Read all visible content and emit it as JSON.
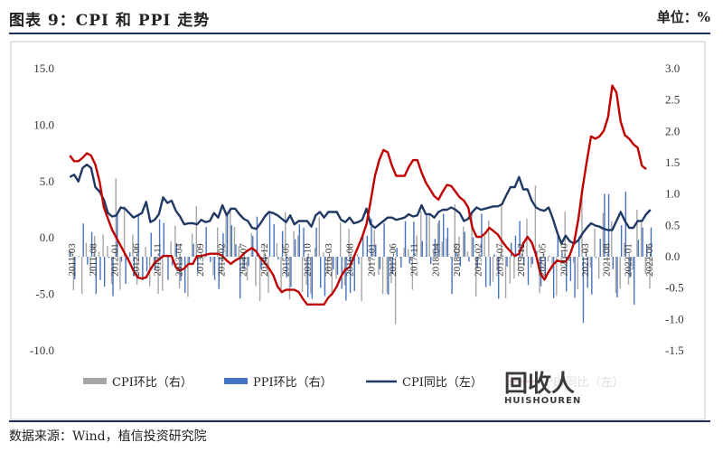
{
  "header": {
    "title": "图表 9：CPI 和 PPI 走势",
    "unit": "单位：%"
  },
  "footer": {
    "source": "数据来源：Wind，植信投资研究院"
  },
  "watermark": {
    "text": "回收人",
    "subtext": "HUISHOUREN"
  },
  "colors": {
    "cpi_mom": "#a6a6a6",
    "ppi_mom": "#4472c4",
    "cpi_yoy": "#1f3864",
    "ppi_yoy": "#c00000",
    "rule": "#1d2f5c"
  },
  "chart_data": {
    "type": "bar+line",
    "xlabels": [
      "2011-03",
      "2011-08",
      "2012-01",
      "2012-06",
      "2012-11",
      "2013-04",
      "2013-09",
      "2014-02",
      "2014-07",
      "2014-12",
      "2015-05",
      "2015-10",
      "2016-03",
      "2016-08",
      "2017-01",
      "2017-06",
      "2017-11",
      "2018-04",
      "2018-09",
      "2019-02",
      "2019-07",
      "2019-12",
      "2020-05",
      "2020-10",
      "2021-03",
      "2021-08",
      "2022-01",
      "2022-06"
    ],
    "ylim_left": [
      -10,
      15
    ],
    "yticks_left": [
      "15.0",
      "10.0",
      "5.0",
      "0.0",
      "-5.0",
      "-10.0"
    ],
    "ylim_right": [
      -1.5,
      3.0
    ],
    "yticks_right": [
      "3.0",
      "2.5",
      "2.0",
      "1.5",
      "1.0",
      "0.5",
      "0.0",
      "-0.5",
      "-1.0",
      "-1.5"
    ],
    "legend": [
      "CPI环比（右）",
      "PPI环比（右）",
      "CPI同比（左）",
      "PPI同比（左）"
    ],
    "series": [
      {
        "name": "CPI同比（左）",
        "axis": "left",
        "kind": "line",
        "values": [
          5.4,
          5.6,
          5.0,
          6.2,
          6.5,
          6.2,
          4.5,
          4.1,
          3.4,
          2.2,
          1.9,
          2.0,
          2.7,
          2.6,
          2.2,
          1.8,
          2.0,
          2.2,
          3.2,
          1.4,
          1.6,
          2.1,
          3.6,
          3.1,
          3.3,
          2.4,
          1.9,
          1.2,
          1.3,
          1.3,
          1.2,
          1.6,
          1.4,
          1.5,
          2.2,
          1.8,
          2.9,
          2.0,
          2.6,
          2.6,
          2.1,
          1.7,
          1.5,
          0.9,
          0.8,
          1.3,
          1.9,
          2.3,
          2.2,
          2.0,
          1.7,
          1.4,
          2.0,
          1.2,
          1.5,
          1.5,
          1.5,
          1.0,
          2.0,
          2.3,
          1.8,
          2.3,
          2.3,
          2.3,
          1.6,
          1.4,
          1.8,
          1.3,
          1.4,
          1.6,
          2.6,
          1.2,
          0.9,
          1.2,
          1.5,
          1.8,
          1.8,
          1.6,
          1.7,
          1.8,
          2.1,
          1.9,
          2.0,
          2.9,
          2.1,
          2.1,
          1.8,
          2.3,
          2.5,
          2.5,
          2.7,
          2.5,
          2.2,
          1.5,
          1.7,
          2.3,
          2.7,
          2.5,
          2.6,
          2.7,
          2.8,
          2.8,
          3.0,
          3.8,
          4.5,
          4.5,
          5.4,
          4.3,
          4.3,
          3.3,
          2.7,
          2.5,
          2.4,
          2.7,
          1.7,
          0.5,
          -0.5,
          0.2,
          -0.3,
          -0.5,
          -0.2,
          0.4,
          0.9,
          1.3,
          1.1,
          1.0,
          0.8,
          0.7,
          0.7,
          1.5,
          2.3,
          1.5,
          0.9,
          0.9,
          1.5,
          1.5,
          2.1,
          2.5
        ],
        "x_start": "2011-03"
      },
      {
        "name": "PPI同比（左）",
        "axis": "left",
        "kind": "line",
        "values": [
          7.3,
          6.8,
          6.8,
          7.1,
          7.5,
          7.3,
          6.5,
          5.0,
          2.7,
          1.7,
          0.7,
          0.0,
          -0.7,
          -1.4,
          -2.1,
          -2.9,
          -3.5,
          -3.6,
          -3.5,
          -2.8,
          -2.2,
          -1.9,
          -1.6,
          -1.6,
          -1.6,
          -2.6,
          -2.9,
          -2.7,
          -2.3,
          -2.3,
          -1.6,
          -1.6,
          -1.5,
          -1.4,
          -1.4,
          -1.4,
          -1.6,
          -2.0,
          -2.3,
          -2.0,
          -1.8,
          -1.4,
          -1.1,
          -0.9,
          -1.2,
          -1.8,
          -2.2,
          -2.7,
          -3.3,
          -4.3,
          -4.8,
          -4.6,
          -4.6,
          -4.6,
          -4.8,
          -5.4,
          -5.9,
          -5.9,
          -5.9,
          -5.9,
          -5.9,
          -5.3,
          -4.9,
          -4.3,
          -3.4,
          -2.8,
          -2.6,
          -1.7,
          -0.8,
          0.1,
          1.2,
          3.3,
          5.5,
          6.9,
          7.8,
          7.6,
          6.4,
          5.5,
          5.5,
          5.5,
          6.3,
          6.9,
          6.9,
          5.8,
          4.9,
          4.3,
          3.7,
          3.4,
          4.1,
          4.7,
          4.6,
          4.1,
          3.6,
          3.3,
          2.7,
          0.9,
          0.1,
          0.1,
          0.4,
          0.9,
          0.6,
          0.3,
          -0.3,
          -0.8,
          -1.2,
          -1.6,
          -1.4,
          -0.5,
          0.1,
          -0.4,
          -1.5,
          -3.1,
          -3.7,
          -3.0,
          -2.4,
          -2.0,
          -2.1,
          -2.1,
          -1.5,
          -0.4,
          1.7,
          4.4,
          6.8,
          9.0,
          8.8,
          9.0,
          9.5,
          10.7,
          13.5,
          12.9,
          10.3,
          9.1,
          8.8,
          8.3,
          8.0,
          6.4,
          6.1
        ]
      },
      {
        "name": "CPI环比（右）",
        "axis": "right",
        "kind": "bar"
      },
      {
        "name": "PPI环比（右）",
        "axis": "right",
        "kind": "bar"
      }
    ]
  }
}
